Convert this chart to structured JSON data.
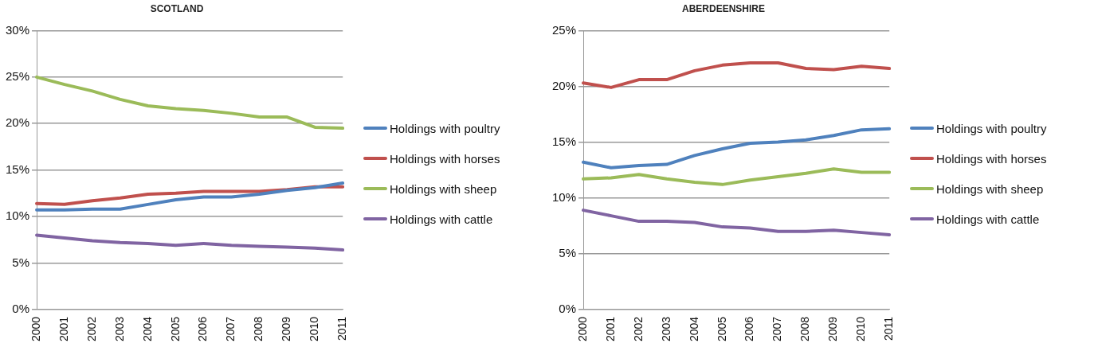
{
  "chart_data": [
    {
      "type": "line",
      "title": "SCOTLAND",
      "categories": [
        "2000",
        "2001",
        "2002",
        "2003",
        "2004",
        "2005",
        "2006",
        "2007",
        "2008",
        "2009",
        "2010",
        "2011"
      ],
      "series": [
        {
          "name": "Holdings with poultry",
          "color": "#4f81bd",
          "values": [
            10.7,
            10.7,
            10.8,
            10.8,
            11.3,
            11.8,
            12.1,
            12.1,
            12.4,
            12.8,
            13.1,
            13.6
          ]
        },
        {
          "name": "Holdings with horses",
          "color": "#c0504d",
          "values": [
            11.4,
            11.3,
            11.7,
            12.0,
            12.4,
            12.5,
            12.7,
            12.7,
            12.7,
            12.9,
            13.2,
            13.2
          ]
        },
        {
          "name": "Holdings with sheep",
          "color": "#9bbb59",
          "values": [
            25.0,
            24.2,
            23.5,
            22.6,
            21.9,
            21.6,
            21.4,
            21.1,
            20.7,
            20.7,
            19.6,
            19.5
          ]
        },
        {
          "name": "Holdings with cattle",
          "color": "#8064a2",
          "values": [
            8.0,
            7.7,
            7.4,
            7.2,
            7.1,
            6.9,
            7.1,
            6.9,
            6.8,
            6.7,
            6.6,
            6.4
          ]
        }
      ],
      "ylim": [
        0,
        30
      ],
      "yticks": [
        {
          "value": 0,
          "label": "0%"
        },
        {
          "value": 5,
          "label": "5%"
        },
        {
          "value": 10,
          "label": "10%"
        },
        {
          "value": 15,
          "label": "15%"
        },
        {
          "value": 20,
          "label": "20%"
        },
        {
          "value": 25,
          "label": "25%"
        },
        {
          "value": 30,
          "label": "30%"
        }
      ],
      "grid": "y",
      "legend": "right",
      "marker": "none",
      "line_style": "solid"
    },
    {
      "type": "line",
      "title": "ABERDEENSHIRE",
      "categories": [
        "2000",
        "2001",
        "2002",
        "2003",
        "2004",
        "2005",
        "2006",
        "2007",
        "2008",
        "2009",
        "2010",
        "2011"
      ],
      "series": [
        {
          "name": "Holdings with poultry",
          "color": "#4f81bd",
          "values": [
            13.2,
            12.7,
            12.9,
            13.0,
            13.8,
            14.4,
            14.9,
            15.0,
            15.2,
            15.6,
            16.1,
            16.2
          ]
        },
        {
          "name": "Holdings with horses",
          "color": "#c0504d",
          "values": [
            20.3,
            19.9,
            20.6,
            20.6,
            21.4,
            21.9,
            22.1,
            22.1,
            21.6,
            21.5,
            21.8,
            21.6
          ]
        },
        {
          "name": "Holdings with sheep",
          "color": "#9bbb59",
          "values": [
            11.7,
            11.8,
            12.1,
            11.7,
            11.4,
            11.2,
            11.6,
            11.9,
            12.2,
            12.6,
            12.3,
            12.3
          ]
        },
        {
          "name": "Holdings with cattle",
          "color": "#8064a2",
          "values": [
            8.9,
            8.4,
            7.9,
            7.9,
            7.8,
            7.4,
            7.3,
            7.0,
            7.0,
            7.1,
            6.9,
            6.7
          ]
        }
      ],
      "ylim": [
        0,
        25
      ],
      "yticks": [
        {
          "value": 0,
          "label": "0%"
        },
        {
          "value": 5,
          "label": "5%"
        },
        {
          "value": 10,
          "label": "10%"
        },
        {
          "value": 15,
          "label": "15%"
        },
        {
          "value": 20,
          "label": "20%"
        },
        {
          "value": 25,
          "label": "25%"
        }
      ],
      "grid": "y",
      "legend": "right",
      "marker": "none",
      "line_style": "solid"
    }
  ]
}
